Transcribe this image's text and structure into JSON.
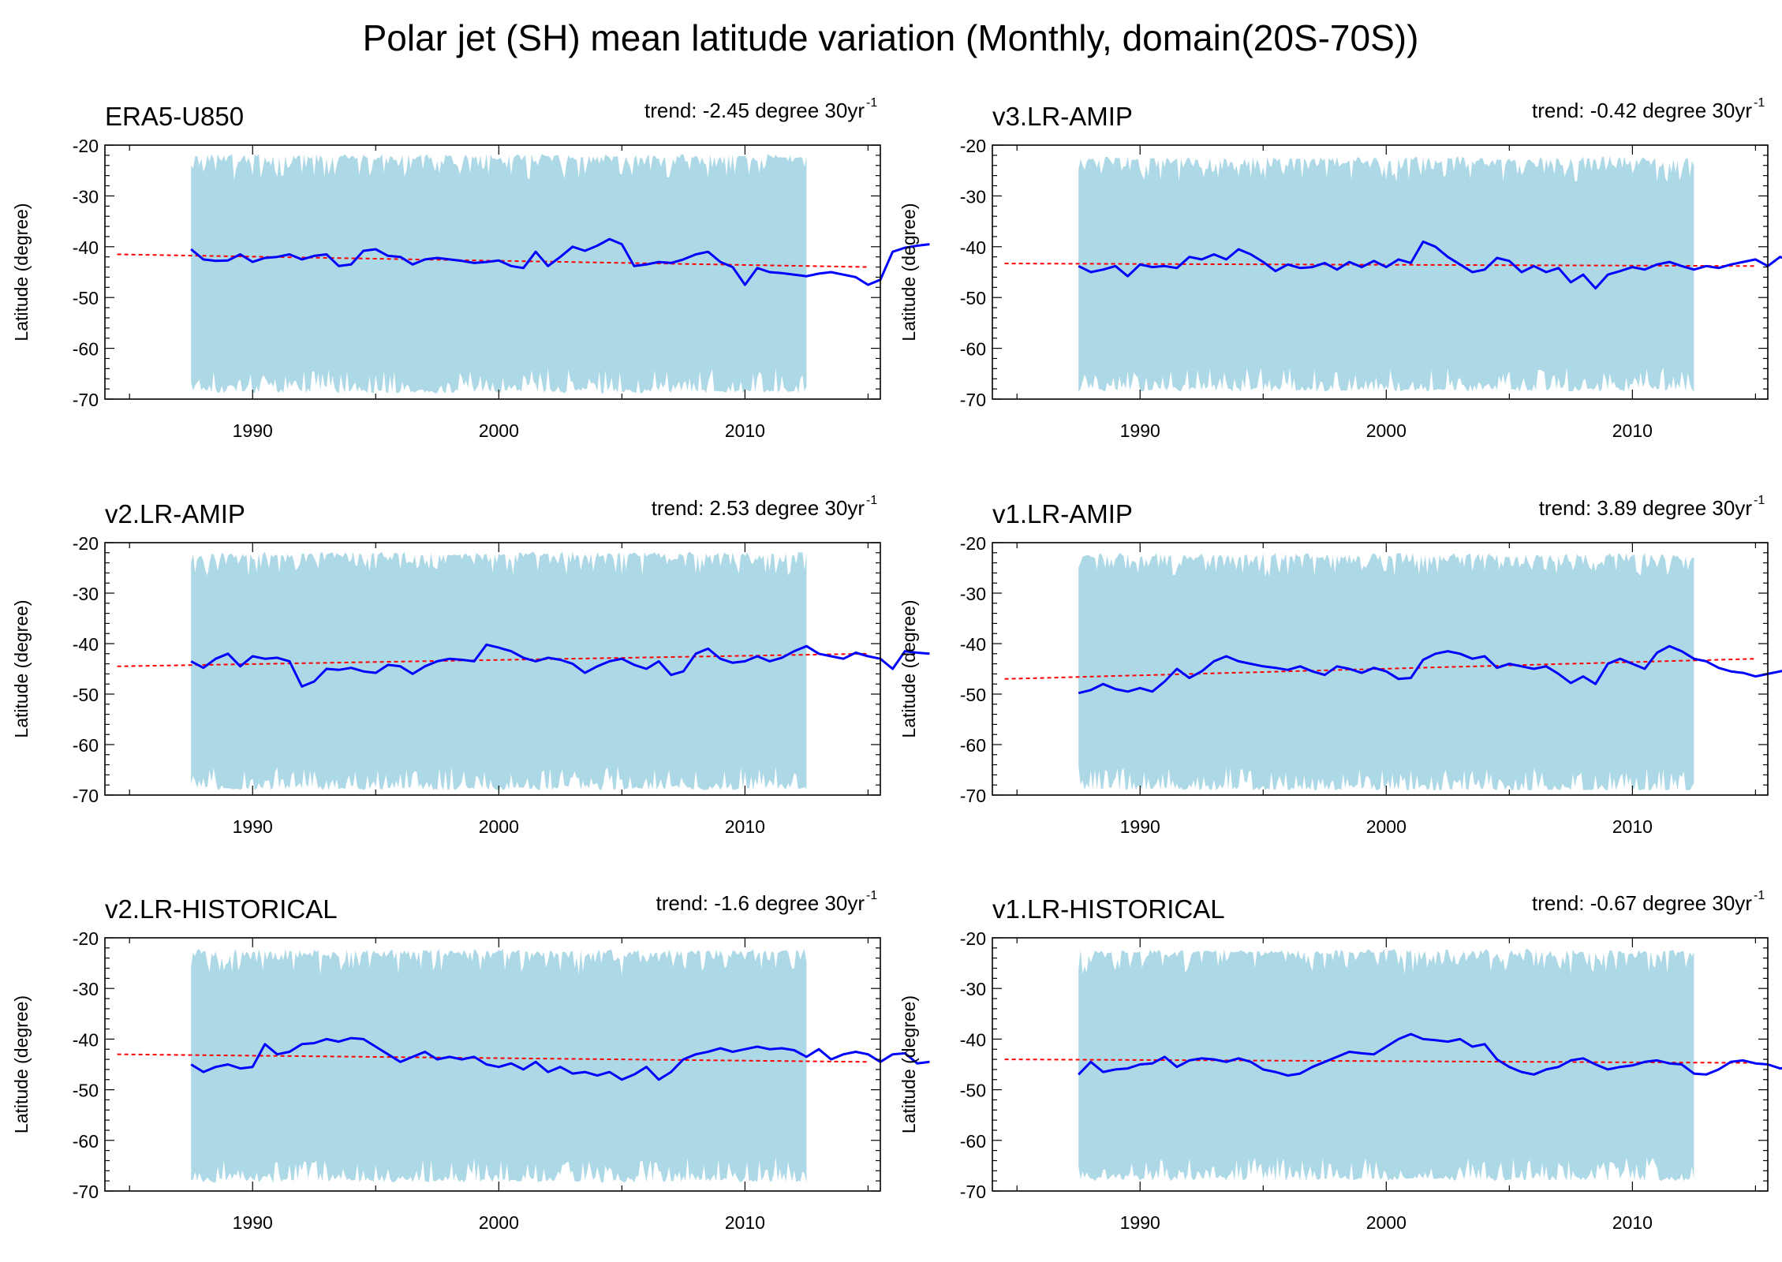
{
  "title": "Polar jet (SH) mean latitude variation (Monthly, domain(20S-70S))",
  "colors": {
    "band": "#add8e6",
    "line": "#0000ff",
    "trend": "#ff0000",
    "axis": "#000000"
  },
  "chart_data": [
    {
      "type": "line",
      "name": "ERA5-U850",
      "trend_text": "trend: -2.45 degree 30yr",
      "trend_sup": "-1",
      "ylabel": "Latitude (degree)",
      "xlim": [
        1984,
        2015.5
      ],
      "ylim": [
        -70,
        -20
      ],
      "xticks": [
        1990,
        2000,
        2010
      ],
      "yticks": [
        -20,
        -30,
        -40,
        -50,
        -60,
        -70
      ],
      "x_range": [
        1987.5,
        2012.5
      ],
      "band": {
        "upper_mean": -22.5,
        "lower_mean": -68.3
      },
      "trend_line": {
        "x": [
          1984.5,
          2015
        ],
        "y": [
          -41.5,
          -44.0
        ]
      },
      "series": {
        "x_start": 1987.5,
        "x_step": 0.5,
        "values": [
          -40.5,
          -42.5,
          -42.8,
          -42.7,
          -41.5,
          -43.0,
          -42.2,
          -42.0,
          -41.5,
          -42.5,
          -41.8,
          -41.5,
          -43.8,
          -43.5,
          -40.8,
          -40.5,
          -41.8,
          -42.0,
          -43.5,
          -42.5,
          -42.2,
          -42.5,
          -42.8,
          -43.2,
          -43.0,
          -42.7,
          -43.8,
          -44.2,
          -41.0,
          -43.8,
          -42.0,
          -40.0,
          -40.8,
          -39.8,
          -38.5,
          -39.5,
          -43.8,
          -43.5,
          -43.0,
          -43.2,
          -42.5,
          -41.5,
          -41.0,
          -43.0,
          -44.0,
          -47.5,
          -44.2,
          -45.0,
          -45.2,
          -45.5,
          -45.8,
          -45.3,
          -45.0,
          -45.5,
          -46.0,
          -47.5,
          -46.5,
          -41.0,
          -40.2,
          -39.8,
          -39.5
        ]
      }
    },
    {
      "type": "line",
      "name": "v3.LR-AMIP",
      "trend_text": "trend: -0.42 degree 30yr",
      "trend_sup": "-1",
      "ylabel": "Latitude (degree)",
      "xlim": [
        1984,
        2015.5
      ],
      "ylim": [
        -70,
        -20
      ],
      "xticks": [
        1990,
        2000,
        2010
      ],
      "yticks": [
        -20,
        -30,
        -40,
        -50,
        -60,
        -70
      ],
      "x_range": [
        1987.5,
        2012.5
      ],
      "band": {
        "upper_mean": -23.0,
        "lower_mean": -68.0
      },
      "trend_line": {
        "x": [
          1984.5,
          2015
        ],
        "y": [
          -43.3,
          -43.8
        ]
      },
      "series": {
        "x_start": 1987.5,
        "x_step": 0.5,
        "values": [
          -43.8,
          -45.0,
          -44.5,
          -43.8,
          -45.8,
          -43.5,
          -44.0,
          -43.8,
          -44.2,
          -42.0,
          -42.5,
          -41.5,
          -42.5,
          -40.5,
          -41.5,
          -43.0,
          -44.8,
          -43.5,
          -44.2,
          -44.0,
          -43.2,
          -44.5,
          -43.0,
          -44.0,
          -42.8,
          -44.0,
          -42.5,
          -43.2,
          -39.0,
          -40.0,
          -42.0,
          -43.5,
          -45.0,
          -44.5,
          -42.2,
          -42.8,
          -45.0,
          -43.8,
          -45.0,
          -44.2,
          -47.0,
          -45.5,
          -48.2,
          -45.5,
          -44.8,
          -44.0,
          -44.5,
          -43.5,
          -43.0,
          -43.8,
          -44.5,
          -43.8,
          -44.2,
          -43.5,
          -43.0,
          -42.5,
          -43.8,
          -42.0,
          -43.0,
          -42.5,
          -42.8
        ]
      }
    },
    {
      "type": "line",
      "name": "v2.LR-AMIP",
      "trend_text": "trend: 2.53 degree 30yr",
      "trend_sup": "-1",
      "ylabel": "Latitude (degree)",
      "xlim": [
        1984,
        2015.5
      ],
      "ylim": [
        -70,
        -20
      ],
      "xticks": [
        1990,
        2000,
        2010
      ],
      "yticks": [
        -20,
        -30,
        -40,
        -50,
        -60,
        -70
      ],
      "x_range": [
        1987.5,
        2012.5
      ],
      "band": {
        "upper_mean": -22.5,
        "lower_mean": -68.5
      },
      "trend_line": {
        "x": [
          1984.5,
          2015
        ],
        "y": [
          -44.5,
          -42.0
        ]
      },
      "series": {
        "x_start": 1987.5,
        "x_step": 0.5,
        "values": [
          -43.5,
          -44.8,
          -43.0,
          -42.0,
          -44.5,
          -42.5,
          -43.0,
          -42.8,
          -43.5,
          -48.5,
          -47.5,
          -45.0,
          -45.2,
          -44.8,
          -45.5,
          -45.8,
          -44.2,
          -44.5,
          -46.0,
          -44.5,
          -43.5,
          -43.0,
          -43.2,
          -43.5,
          -40.2,
          -40.8,
          -41.5,
          -42.8,
          -43.5,
          -42.8,
          -43.2,
          -44.0,
          -45.8,
          -44.5,
          -43.5,
          -43.0,
          -44.2,
          -45.0,
          -43.5,
          -46.2,
          -45.5,
          -42.0,
          -41.0,
          -43.0,
          -43.8,
          -43.5,
          -42.5,
          -43.5,
          -42.8,
          -41.5,
          -40.5,
          -42.0,
          -42.5,
          -43.0,
          -41.8,
          -42.5,
          -43.0,
          -45.0,
          -41.5,
          -41.8,
          -42.0
        ]
      }
    },
    {
      "type": "line",
      "name": "v1.LR-AMIP",
      "trend_text": "trend: 3.89 degree 30yr",
      "trend_sup": "-1",
      "ylabel": "Latitude (degree)",
      "xlim": [
        1984,
        2015.5
      ],
      "ylim": [
        -70,
        -20
      ],
      "xticks": [
        1990,
        2000,
        2010
      ],
      "yticks": [
        -20,
        -30,
        -40,
        -50,
        -60,
        -70
      ],
      "x_range": [
        1987.5,
        2012.5
      ],
      "band": {
        "upper_mean": -22.8,
        "lower_mean": -68.8
      },
      "trend_line": {
        "x": [
          1984.5,
          2015
        ],
        "y": [
          -47.0,
          -43.0
        ]
      },
      "series": {
        "x_start": 1987.5,
        "x_step": 0.5,
        "values": [
          -49.8,
          -49.2,
          -48.0,
          -49.0,
          -49.5,
          -48.8,
          -49.5,
          -47.5,
          -45.0,
          -46.8,
          -45.5,
          -43.5,
          -42.5,
          -43.5,
          -44.0,
          -44.5,
          -44.8,
          -45.2,
          -44.5,
          -45.5,
          -46.2,
          -44.5,
          -45.0,
          -45.8,
          -44.8,
          -45.5,
          -47.0,
          -46.8,
          -43.2,
          -42.0,
          -41.5,
          -42.0,
          -43.0,
          -42.5,
          -44.8,
          -44.0,
          -44.5,
          -45.0,
          -44.5,
          -46.0,
          -47.8,
          -46.5,
          -48.0,
          -44.0,
          -43.0,
          -44.0,
          -45.0,
          -41.8,
          -40.5,
          -41.5,
          -43.0,
          -43.5,
          -44.8,
          -45.5,
          -45.8,
          -46.5,
          -46.0,
          -45.5,
          -45.0,
          -44.5,
          -44.8
        ]
      }
    },
    {
      "type": "line",
      "name": "v2.LR-HISTORICAL",
      "trend_text": "trend: -1.6 degree 30yr",
      "trend_sup": "-1",
      "ylabel": "Latitude (degree)",
      "xlim": [
        1984,
        2015.5
      ],
      "ylim": [
        -70,
        -20
      ],
      "xticks": [
        1990,
        2000,
        2010
      ],
      "yticks": [
        -20,
        -30,
        -40,
        -50,
        -60,
        -70
      ],
      "x_range": [
        1987.5,
        2012.5
      ],
      "band": {
        "upper_mean": -23.0,
        "lower_mean": -67.8
      },
      "trend_line": {
        "x": [
          1984.5,
          2015
        ],
        "y": [
          -43.0,
          -44.5
        ]
      },
      "series": {
        "x_start": 1987.5,
        "x_step": 0.5,
        "values": [
          -45.0,
          -46.5,
          -45.5,
          -45.0,
          -45.8,
          -45.5,
          -41.0,
          -43.0,
          -42.5,
          -41.0,
          -40.8,
          -40.0,
          -40.5,
          -39.8,
          -40.0,
          -41.5,
          -43.0,
          -44.5,
          -43.5,
          -42.5,
          -44.0,
          -43.5,
          -44.0,
          -43.5,
          -45.0,
          -45.5,
          -44.8,
          -46.0,
          -44.5,
          -46.5,
          -45.5,
          -46.8,
          -46.5,
          -47.2,
          -46.5,
          -48.0,
          -47.0,
          -45.5,
          -48.0,
          -46.5,
          -44.0,
          -43.0,
          -42.5,
          -41.8,
          -42.5,
          -42.0,
          -41.5,
          -42.0,
          -41.8,
          -42.2,
          -43.5,
          -42.0,
          -44.0,
          -43.0,
          -42.5,
          -43.0,
          -44.5,
          -43.0,
          -42.8,
          -44.8,
          -44.5
        ]
      }
    },
    {
      "type": "line",
      "name": "v1.LR-HISTORICAL",
      "trend_text": "trend: -0.67 degree 30yr",
      "trend_sup": "-1",
      "ylabel": "Latitude (degree)",
      "xlim": [
        1984,
        2015.5
      ],
      "ylim": [
        -70,
        -20
      ],
      "xticks": [
        1990,
        2000,
        2010
      ],
      "yticks": [
        -20,
        -30,
        -40,
        -50,
        -60,
        -70
      ],
      "x_range": [
        1987.5,
        2012.5
      ],
      "band": {
        "upper_mean": -23.0,
        "lower_mean": -67.5
      },
      "trend_line": {
        "x": [
          1984.5,
          2015
        ],
        "y": [
          -44.0,
          -44.7
        ]
      },
      "series": {
        "x_start": 1987.5,
        "x_step": 0.5,
        "values": [
          -47.0,
          -44.5,
          -46.5,
          -46.0,
          -45.8,
          -45.0,
          -44.8,
          -43.5,
          -45.5,
          -44.2,
          -43.8,
          -44.0,
          -44.5,
          -43.8,
          -44.5,
          -46.0,
          -46.5,
          -47.2,
          -46.8,
          -45.5,
          -44.5,
          -43.5,
          -42.5,
          -42.8,
          -43.0,
          -41.5,
          -40.0,
          -39.0,
          -40.0,
          -40.2,
          -40.5,
          -40.0,
          -41.5,
          -41.0,
          -44.0,
          -45.5,
          -46.5,
          -47.0,
          -46.0,
          -45.5,
          -44.2,
          -43.8,
          -45.0,
          -46.0,
          -45.5,
          -45.2,
          -44.5,
          -44.2,
          -44.8,
          -45.0,
          -46.8,
          -47.0,
          -46.0,
          -44.5,
          -44.2,
          -44.8,
          -45.0,
          -45.8,
          -45.5,
          -46.5,
          -46.8
        ]
      }
    }
  ]
}
